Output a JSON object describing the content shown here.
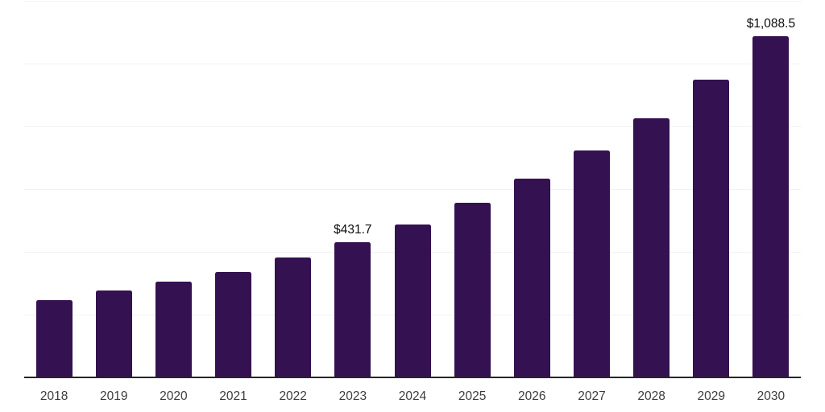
{
  "chart_data": {
    "type": "bar",
    "title": "",
    "xlabel": "",
    "ylabel": "",
    "categories": [
      "2018",
      "2019",
      "2020",
      "2021",
      "2022",
      "2023",
      "2024",
      "2025",
      "2026",
      "2027",
      "2028",
      "2029",
      "2030"
    ],
    "values": [
      245,
      276,
      304,
      337,
      381,
      431.7,
      488,
      557,
      634,
      723,
      825,
      950,
      1088.5
    ],
    "data_labels": {
      "2023": "$431.7",
      "2030": "$1,088.5"
    },
    "ylim": [
      0,
      1200
    ],
    "grid_step": 200,
    "grid": true,
    "legend": "none",
    "colors": {
      "bar": "#341150",
      "gridline": "#f2f2f2",
      "axis_line": "#262626",
      "tick_text": "#3d3d3d",
      "data_label_text": "#0d0d0d",
      "background": "#ffffff"
    }
  }
}
